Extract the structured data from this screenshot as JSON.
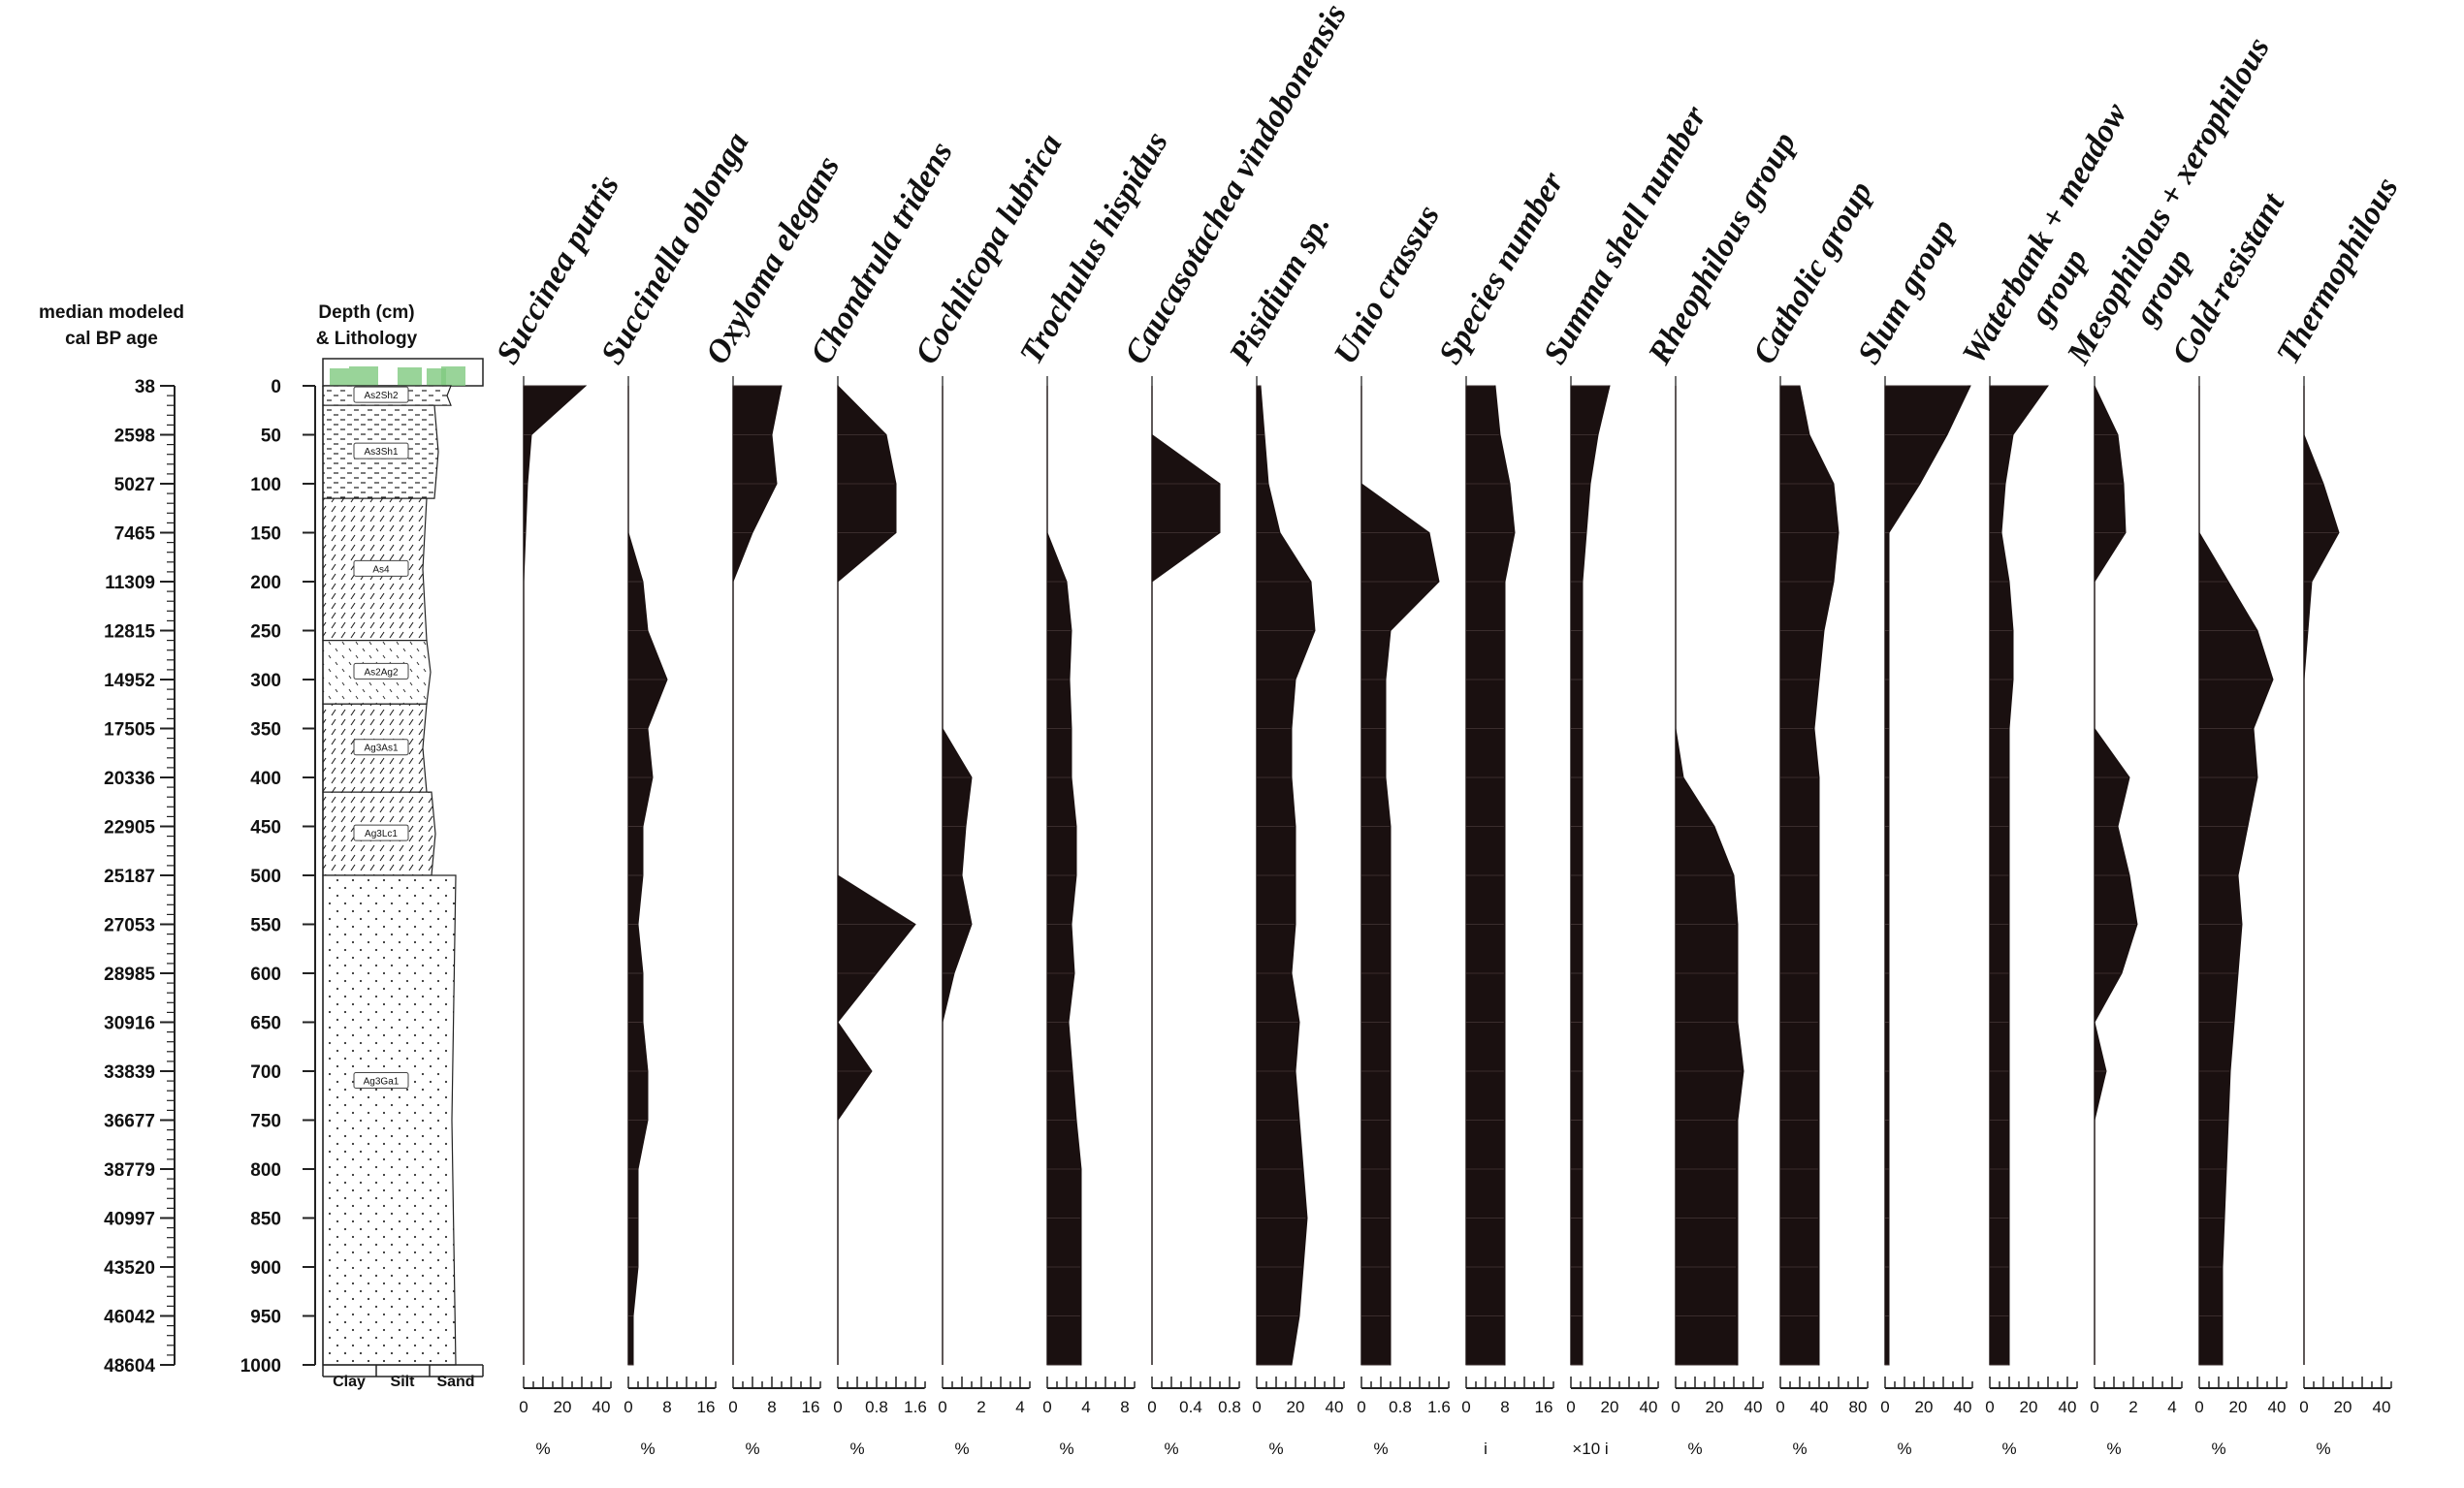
{
  "chart_data": {
    "type": "area",
    "orientation": "vertical-stratigraphic",
    "age_axis": {
      "header": [
        "median modeled",
        "cal BP age"
      ],
      "labels": [
        "38",
        "2598",
        "5027",
        "7465",
        "11309",
        "12815",
        "14952",
        "17505",
        "20336",
        "22905",
        "25187",
        "27053",
        "28985",
        "30916",
        "33839",
        "36677",
        "38779",
        "40997",
        "43520",
        "46042",
        "48604"
      ]
    },
    "depth_axis": {
      "header": [
        "Depth (cm)",
        "& Lithology"
      ],
      "labels": [
        "0",
        "50",
        "100",
        "150",
        "200",
        "250",
        "300",
        "350",
        "400",
        "450",
        "500",
        "550",
        "600",
        "650",
        "700",
        "750",
        "800",
        "850",
        "900",
        "950",
        "1000"
      ],
      "range": [
        0,
        1000
      ]
    },
    "lithology": {
      "units": [
        "As2Sh2",
        "As3Sh1",
        "As4",
        "As2Ag2",
        "Ag3As1",
        "Ag3Lc1",
        "Ag3Ga1"
      ],
      "unit_depths": [
        [
          0,
          20
        ],
        [
          20,
          115
        ],
        [
          115,
          260
        ],
        [
          260,
          325
        ],
        [
          325,
          415
        ],
        [
          415,
          500
        ],
        [
          500,
          1000
        ]
      ],
      "columns": [
        "Clay",
        "Silt",
        "Sand"
      ]
    },
    "depths": [
      0,
      50,
      100,
      150,
      200,
      250,
      300,
      350,
      400,
      450,
      500,
      550,
      600,
      650,
      700,
      750,
      800,
      850,
      900,
      950,
      1000
    ],
    "series": [
      {
        "name": "Succinea putris",
        "unit": "%",
        "ticks": [
          "0",
          "20",
          "40"
        ],
        "max": 40,
        "values": [
          32,
          4,
          2,
          1,
          0,
          0,
          0,
          0,
          0,
          0,
          0,
          0,
          0,
          0,
          0,
          0,
          0,
          0,
          0,
          0,
          0
        ]
      },
      {
        "name": "Succinella oblonga",
        "unit": "%",
        "ticks": [
          "0",
          "8",
          "16"
        ],
        "max": 16,
        "values": [
          0,
          0,
          0,
          0,
          3,
          4,
          8,
          4,
          5,
          3,
          3,
          2,
          3,
          3,
          4,
          4,
          2,
          2,
          2,
          1,
          1
        ]
      },
      {
        "name": "Oxyloma elegans",
        "unit": "%",
        "ticks": [
          "0",
          "8",
          "16"
        ],
        "max": 16,
        "values": [
          10,
          8,
          9,
          4,
          0,
          0,
          0,
          0,
          0,
          0,
          0,
          0,
          0,
          0,
          0,
          0,
          0,
          0,
          0,
          0,
          0
        ]
      },
      {
        "name": "Chondrula tridens",
        "unit": "%",
        "ticks": [
          "0",
          "0.8",
          "1.6"
        ],
        "max": 1.6,
        "values": [
          0,
          1.0,
          1.2,
          1.2,
          0,
          0,
          0,
          0,
          0,
          0,
          0,
          1.6,
          0.8,
          0,
          0.7,
          0,
          0,
          0,
          0,
          0,
          0
        ]
      },
      {
        "name": "Cochlicopa lubrica",
        "unit": "%",
        "ticks": [
          "0",
          "2",
          "4"
        ],
        "max": 4,
        "values": [
          0,
          0,
          0,
          0,
          0,
          0,
          0,
          0,
          1.5,
          1.2,
          1.0,
          1.5,
          0.6,
          0,
          0,
          0,
          0,
          0,
          0,
          0,
          0
        ]
      },
      {
        "name": "Trochulus hispidus",
        "unit": "%",
        "ticks": [
          "0",
          "4",
          "8"
        ],
        "max": 8,
        "values": [
          0,
          0,
          0,
          0,
          2,
          2.5,
          2.3,
          2.5,
          2.5,
          3,
          3,
          2.5,
          2.8,
          2.2,
          2.6,
          3,
          3.5,
          3.5,
          3.5,
          3.5,
          3.5
        ]
      },
      {
        "name": "Caucasotachea vindobonensis",
        "unit": "%",
        "ticks": [
          "0",
          "0.4",
          "0.8"
        ],
        "max": 0.8,
        "values": [
          0,
          0,
          0.7,
          0.7,
          0,
          0,
          0,
          0,
          0,
          0,
          0,
          0,
          0,
          0,
          0,
          0,
          0,
          0,
          0,
          0,
          0
        ]
      },
      {
        "name": "Pisidium sp.",
        "unit": "%",
        "ticks": [
          "0",
          "20",
          "40"
        ],
        "max": 40,
        "values": [
          2,
          4,
          6,
          12,
          28,
          30,
          20,
          18,
          18,
          20,
          20,
          20,
          18,
          22,
          20,
          22,
          24,
          26,
          24,
          22,
          18
        ]
      },
      {
        "name": "Unio crassus",
        "unit": "%",
        "ticks": [
          "0",
          "0.8",
          "1.6"
        ],
        "max": 1.6,
        "values": [
          0,
          0,
          0,
          1.4,
          1.6,
          0.6,
          0.5,
          0.5,
          0.5,
          0.6,
          0.6,
          0.6,
          0.6,
          0.6,
          0.6,
          0.6,
          0.6,
          0.6,
          0.6,
          0.6,
          0.6
        ]
      },
      {
        "name": "Species number",
        "unit": "i",
        "ticks": [
          "0",
          "8",
          "16"
        ],
        "max": 16,
        "values": [
          6,
          7,
          9,
          10,
          8,
          8,
          8,
          8,
          8,
          8,
          8,
          8,
          8,
          8,
          8,
          8,
          8,
          8,
          8,
          8,
          8
        ]
      },
      {
        "name": "Summa shell number",
        "unit": "×10 i",
        "ticks": [
          "0",
          "20",
          "40"
        ],
        "max": 40,
        "values": [
          20,
          14,
          10,
          8,
          6,
          6,
          6,
          6,
          6,
          6,
          6,
          6,
          6,
          6,
          6,
          6,
          6,
          6,
          6,
          6,
          6
        ]
      },
      {
        "name": "Rheophilous group",
        "unit": "%",
        "ticks": [
          "0",
          "20",
          "40"
        ],
        "max": 40,
        "values": [
          0,
          0,
          0,
          0,
          0,
          0,
          0,
          0,
          4,
          20,
          30,
          32,
          32,
          32,
          35,
          32,
          32,
          32,
          32,
          32,
          32
        ]
      },
      {
        "name": "Catholic group",
        "unit": "%",
        "ticks": [
          "0",
          "40",
          "80"
        ],
        "max": 80,
        "values": [
          20,
          30,
          55,
          60,
          55,
          45,
          40,
          35,
          40,
          40,
          40,
          40,
          40,
          40,
          40,
          40,
          40,
          40,
          40,
          40,
          40
        ]
      },
      {
        "name": "Slum group",
        "unit": "%",
        "ticks": [
          "0",
          "20",
          "40"
        ],
        "max": 40,
        "values": [
          44,
          32,
          18,
          2,
          2,
          2,
          2,
          2,
          2,
          2,
          2,
          2,
          2,
          2,
          2,
          2,
          2,
          2,
          2,
          2,
          2
        ]
      },
      {
        "name": "Waterbank + meadow group",
        "unit": "%",
        "ticks": [
          "0",
          "20",
          "40"
        ],
        "max": 40,
        "values": [
          30,
          12,
          8,
          6,
          10,
          12,
          12,
          10,
          10,
          10,
          10,
          10,
          10,
          10,
          10,
          10,
          10,
          10,
          10,
          10,
          10
        ]
      },
      {
        "name": "Mesophilous + xerophilous group",
        "unit": "%",
        "ticks": [
          "0",
          "2",
          "4"
        ],
        "max": 4,
        "values": [
          0,
          1.2,
          1.5,
          1.6,
          0,
          0,
          0,
          0,
          1.8,
          1.2,
          1.8,
          2.2,
          1.4,
          0,
          0.6,
          0,
          0,
          0,
          0,
          0,
          0
        ]
      },
      {
        "name": "Cold-resistant",
        "unit": "%",
        "ticks": [
          "0",
          "20",
          "40"
        ],
        "max": 40,
        "values": [
          0,
          0,
          0,
          0,
          15,
          30,
          38,
          28,
          30,
          25,
          20,
          22,
          20,
          18,
          16,
          15,
          14,
          13,
          12,
          12,
          12
        ]
      },
      {
        "name": "Thermophilous",
        "unit": "%",
        "ticks": [
          "0",
          "20",
          "40"
        ],
        "max": 40,
        "values": [
          0,
          0,
          10,
          18,
          4,
          2,
          0,
          0,
          0,
          0,
          0,
          0,
          0,
          0,
          0,
          0,
          0,
          0,
          0,
          0,
          0
        ]
      }
    ]
  }
}
